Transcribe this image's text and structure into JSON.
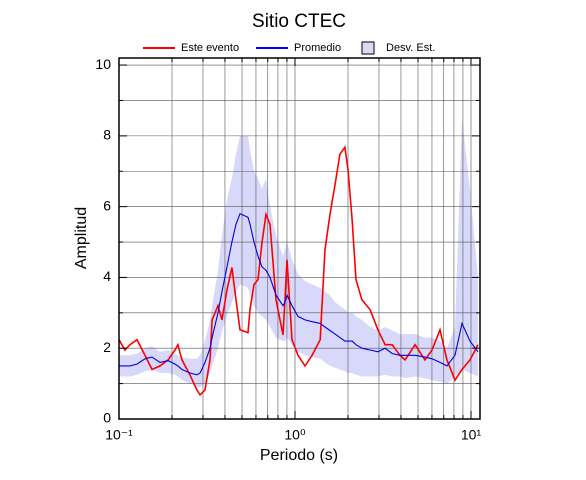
{
  "chart_data": {
    "type": "line",
    "title": "Sitio CTEC",
    "x_label": "Periodo (s)",
    "y_label": "Amplitud",
    "xscale": "log",
    "xlim": [
      0.1,
      11.25
    ],
    "ylim": [
      0,
      10.2
    ],
    "xticks": [
      {
        "value": 0.1,
        "label": "10⁻¹"
      },
      {
        "value": 1,
        "label": "10⁰"
      },
      {
        "value": 10,
        "label": "10¹"
      }
    ],
    "xminor": [
      0.2,
      0.3,
      0.4,
      0.5,
      0.6,
      0.7,
      0.8,
      0.9,
      2,
      3,
      4,
      5,
      6,
      7,
      8,
      9
    ],
    "yticks": [
      0,
      2,
      4,
      6,
      8,
      10
    ],
    "yminor": [
      1,
      3,
      5,
      7,
      9
    ],
    "grid": true,
    "legend": "top",
    "x": [
      0.1,
      0.108,
      0.1155,
      0.1265,
      0.1405,
      0.154,
      0.171,
      0.19,
      0.208,
      0.216,
      0.228,
      0.253,
      0.277,
      0.289,
      0.308,
      0.329,
      0.338,
      0.365,
      0.385,
      0.411,
      0.438,
      0.462,
      0.487,
      0.541,
      0.555,
      0.585,
      0.616,
      0.649,
      0.684,
      0.721,
      0.78,
      0.855,
      0.877,
      0.901,
      0.962,
      1.04,
      1.14,
      1.25,
      1.39,
      1.48,
      1.58,
      1.69,
      1.8,
      1.92,
      2.0,
      2.11,
      2.22,
      2.4,
      2.67,
      2.96,
      3.25,
      3.56,
      3.95,
      4.22,
      4.81,
      5.48,
      6.0,
      6.67,
      7.3,
      8.11,
      8.89,
      9.87,
      10.96
    ],
    "series": [
      {
        "name": "Este evento",
        "color": "#ff0000",
        "values": [
          2.24,
          1.95,
          2.1,
          2.24,
          1.8,
          1.4,
          1.5,
          1.67,
          1.95,
          2.1,
          1.67,
          1.25,
          0.82,
          0.68,
          0.82,
          1.67,
          2.8,
          3.2,
          2.8,
          3.65,
          4.28,
          3.37,
          2.52,
          2.44,
          3.09,
          3.8,
          3.94,
          4.99,
          5.78,
          5.5,
          3.37,
          2.38,
          3.37,
          4.5,
          2.24,
          1.8,
          1.5,
          1.8,
          2.24,
          4.79,
          5.78,
          6.63,
          7.48,
          7.68,
          7.05,
          5.64,
          3.94,
          3.37,
          3.09,
          2.52,
          2.1,
          2.1,
          1.8,
          1.67,
          2.1,
          1.67,
          1.95,
          2.52,
          1.67,
          1.1,
          1.4,
          1.67,
          2.1
        ]
      },
      {
        "name": "Promedio",
        "color": "#0000e0",
        "values": [
          1.5,
          1.5,
          1.5,
          1.55,
          1.7,
          1.75,
          1.6,
          1.65,
          1.55,
          1.5,
          1.4,
          1.3,
          1.25,
          1.3,
          1.6,
          2.0,
          2.3,
          3.0,
          3.6,
          4.3,
          5.0,
          5.5,
          5.8,
          5.7,
          5.5,
          5.0,
          4.6,
          4.3,
          4.2,
          4.0,
          3.5,
          3.2,
          3.3,
          3.5,
          3.2,
          2.9,
          2.8,
          2.75,
          2.7,
          2.6,
          2.5,
          2.4,
          2.3,
          2.2,
          2.2,
          2.2,
          2.1,
          2.0,
          1.95,
          1.9,
          2.0,
          1.85,
          1.8,
          1.8,
          1.8,
          1.75,
          1.7,
          1.6,
          1.5,
          1.8,
          2.7,
          2.2,
          1.9
        ]
      },
      {
        "name": "Desv. Est.",
        "color": "#d8d8fa",
        "upper": [
          1.8,
          1.8,
          1.8,
          1.85,
          2.0,
          2.05,
          1.9,
          1.95,
          1.85,
          1.8,
          1.75,
          1.7,
          1.7,
          1.8,
          2.2,
          2.8,
          3.2,
          4.2,
          5.2,
          6.2,
          6.8,
          7.5,
          8.0,
          8.0,
          7.6,
          7.0,
          6.8,
          6.5,
          6.8,
          6.0,
          5.2,
          4.6,
          4.8,
          5.0,
          4.5,
          4.1,
          3.9,
          3.8,
          3.7,
          3.6,
          3.5,
          3.3,
          3.2,
          3.1,
          3.0,
          3.0,
          2.9,
          2.8,
          2.6,
          2.5,
          2.6,
          2.5,
          2.4,
          2.4,
          2.4,
          2.3,
          2.3,
          2.2,
          2.0,
          2.6,
          8.5,
          6.5,
          4.0
        ],
        "lower": [
          1.2,
          1.2,
          1.2,
          1.25,
          1.35,
          1.4,
          1.3,
          1.3,
          1.25,
          1.2,
          1.1,
          1.0,
          0.9,
          0.9,
          1.0,
          1.3,
          1.5,
          2.0,
          2.5,
          2.9,
          3.3,
          3.6,
          3.8,
          3.7,
          3.5,
          3.2,
          3.0,
          2.9,
          2.8,
          2.6,
          2.3,
          2.2,
          2.2,
          2.3,
          2.1,
          1.9,
          1.8,
          1.75,
          1.7,
          1.6,
          1.5,
          1.45,
          1.4,
          1.35,
          1.3,
          1.3,
          1.25,
          1.2,
          1.2,
          1.2,
          1.25,
          1.2,
          1.2,
          1.15,
          1.2,
          1.15,
          1.1,
          1.05,
          1.0,
          1.2,
          1.4,
          1.3,
          1.2
        ]
      }
    ]
  }
}
